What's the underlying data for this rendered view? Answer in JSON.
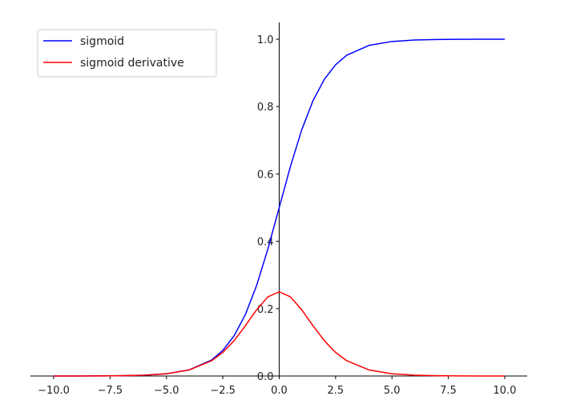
{
  "chart_data": {
    "type": "line",
    "title": "",
    "xlabel": "",
    "ylabel": "",
    "xlim": [
      -10.0,
      10.0
    ],
    "ylim": [
      0.0,
      1.0
    ],
    "grid": false,
    "legend_position": "top-left",
    "x_ticks": [
      "−10.0",
      "−7.5",
      "−5.0",
      "−2.5",
      "0.0",
      "2.5",
      "5.0",
      "7.5",
      "10.0"
    ],
    "x_tick_values": [
      -10.0,
      -7.5,
      -5.0,
      -2.5,
      0.0,
      2.5,
      5.0,
      7.5,
      10.0
    ],
    "y_ticks": [
      "0.0",
      "0.2",
      "0.4",
      "0.6",
      "0.8",
      "1.0"
    ],
    "y_tick_values": [
      0.0,
      0.2,
      0.4,
      0.6,
      0.8,
      1.0
    ],
    "x": [
      -10,
      -9,
      -8,
      -7,
      -6,
      -5,
      -4,
      -3,
      -2.5,
      -2,
      -1.5,
      -1,
      -0.5,
      0,
      0.5,
      1,
      1.5,
      2,
      2.5,
      3,
      4,
      5,
      6,
      7,
      8,
      9,
      10
    ],
    "series": [
      {
        "name": "sigmoid",
        "color": "#0000ff",
        "values": [
          0.0,
          0.0001,
          0.0003,
          0.0009,
          0.0025,
          0.0067,
          0.018,
          0.0474,
          0.0759,
          0.1192,
          0.1824,
          0.2689,
          0.3775,
          0.5,
          0.6225,
          0.7311,
          0.8176,
          0.8808,
          0.9241,
          0.9526,
          0.982,
          0.9933,
          0.9975,
          0.9991,
          0.9997,
          0.9999,
          1.0
        ]
      },
      {
        "name": "sigmoid derivative",
        "color": "#ff0000",
        "values": [
          0.0,
          0.0001,
          0.0003,
          0.0009,
          0.0025,
          0.0066,
          0.0177,
          0.0452,
          0.0701,
          0.105,
          0.1491,
          0.1966,
          0.235,
          0.25,
          0.235,
          0.1966,
          0.1491,
          0.105,
          0.0701,
          0.0452,
          0.0177,
          0.0066,
          0.0025,
          0.0009,
          0.0003,
          0.0001,
          0.0
        ]
      }
    ],
    "legend": {
      "entries": [
        "sigmoid",
        "sigmoid derivative"
      ]
    }
  }
}
